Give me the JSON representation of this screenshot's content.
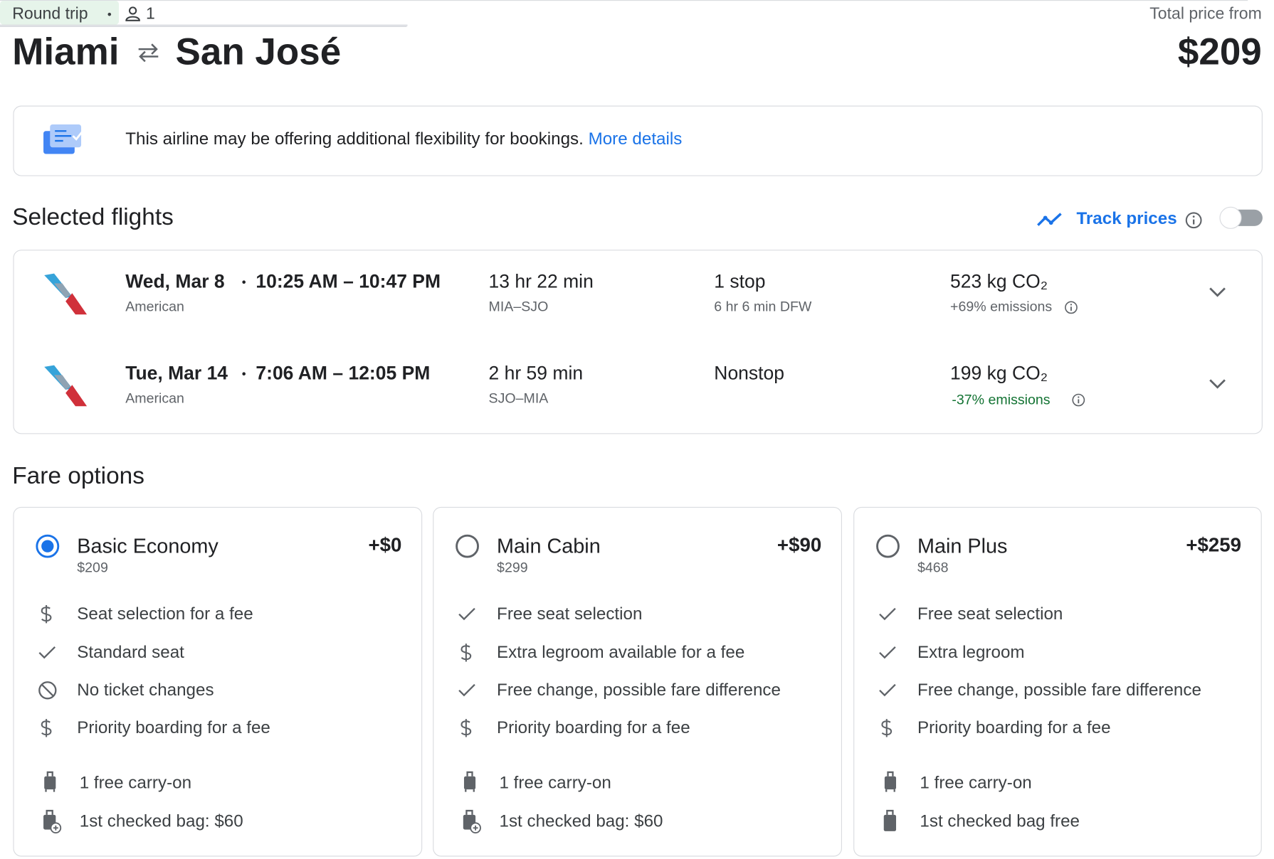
{
  "header": {
    "trip_type": "Round trip",
    "passengers": "1",
    "origin": "Miami",
    "destination": "San José",
    "price_label": "Total price from",
    "price": "$209"
  },
  "notice": {
    "text": "This airline may be offering additional flexibility for bookings.",
    "link": "More details"
  },
  "selected_flights": {
    "title": "Selected flights",
    "track_prices": "Track prices",
    "flights": [
      {
        "date": "Wed, Mar 8",
        "times": "10:25 AM – 10:47 PM",
        "airline": "American",
        "duration": "13 hr 22 min",
        "route": "MIA–SJO",
        "stops": "1 stop",
        "layover": "6 hr 6 min DFW",
        "emissions": "523 kg CO₂",
        "emissions_change": "+69% emissions",
        "emissions_lower": false
      },
      {
        "date": "Tue, Mar 14",
        "times": "7:06 AM – 12:05 PM",
        "airline": "American",
        "duration": "2 hr 59 min",
        "route": "SJO–MIA",
        "stops": "Nonstop",
        "emissions": "199 kg CO₂",
        "emissions_change": "-37% emissions",
        "emissions_lower": true
      }
    ]
  },
  "fare_options": {
    "title": "Fare options",
    "options": [
      {
        "name": "Basic Economy",
        "price": "$209",
        "difference": "+$0",
        "selected": true,
        "features": [
          "Seat selection for a fee",
          "Standard seat",
          "No ticket changes",
          "Priority boarding for a fee"
        ],
        "baggage": [
          "1 free carry-on",
          "1st checked bag: $60"
        ]
      },
      {
        "name": "Main Cabin",
        "price": "$299",
        "difference": "+$90",
        "selected": false,
        "features": [
          "Free seat selection",
          "Extra legroom available for a fee",
          "Free change, possible fare difference",
          "Priority boarding for a fee"
        ],
        "baggage": [
          "1 free carry-on",
          "1st checked bag: $60"
        ]
      },
      {
        "name": "Main Plus",
        "price": "$468",
        "difference": "+$259",
        "selected": false,
        "features": [
          "Free seat selection",
          "Extra legroom",
          "Free change, possible fare difference",
          "Priority boarding for a fee"
        ],
        "baggage": [
          "1 free carry-on",
          "1st checked bag free"
        ]
      }
    ]
  }
}
